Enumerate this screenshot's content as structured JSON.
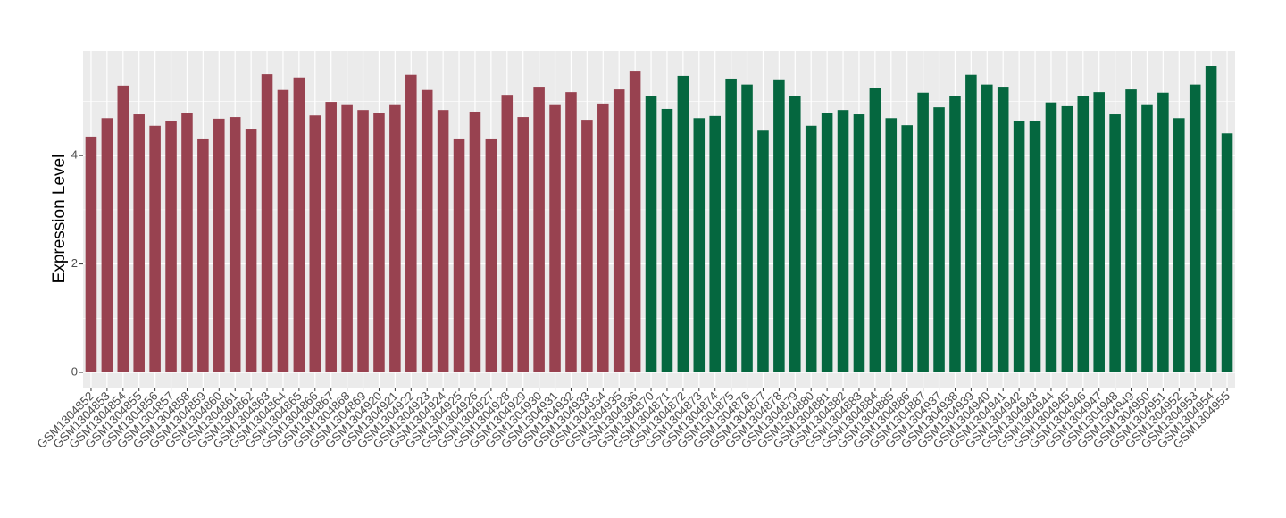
{
  "chart_data": {
    "type": "bar",
    "y_label": "Expression Level",
    "categories": [
      "GSM1304852",
      "GSM1304853",
      "GSM1304854",
      "GSM1304855",
      "GSM1304856",
      "GSM1304857",
      "GSM1304858",
      "GSM1304859",
      "GSM1304860",
      "GSM1304861",
      "GSM1304862",
      "GSM1304863",
      "GSM1304864",
      "GSM1304865",
      "GSM1304866",
      "GSM1304867",
      "GSM1304868",
      "GSM1304869",
      "GSM1304920",
      "GSM1304921",
      "GSM1304922",
      "GSM1304923",
      "GSM1304924",
      "GSM1304925",
      "GSM1304926",
      "GSM1304927",
      "GSM1304928",
      "GSM1304929",
      "GSM1304930",
      "GSM1304931",
      "GSM1304932",
      "GSM1304933",
      "GSM1304934",
      "GSM1304935",
      "GSM1304936",
      "GSM1304870",
      "GSM1304871",
      "GSM1304872",
      "GSM1304873",
      "GSM1304874",
      "GSM1304875",
      "GSM1304876",
      "GSM1304877",
      "GSM1304878",
      "GSM1304879",
      "GSM1304880",
      "GSM1304881",
      "GSM1304882",
      "GSM1304883",
      "GSM1304884",
      "GSM1304885",
      "GSM1304886",
      "GSM1304887",
      "GSM1304937",
      "GSM1304938",
      "GSM1304939",
      "GSM1304940",
      "GSM1304941",
      "GSM1304942",
      "GSM1304943",
      "GSM1304944",
      "GSM1304945",
      "GSM1304946",
      "GSM1304947",
      "GSM1304948",
      "GSM1304949",
      "GSM1304950",
      "GSM1304951",
      "GSM1304952",
      "GSM1304953",
      "GSM1304954",
      "GSM1304955"
    ],
    "series": [
      {
        "color": "#984250",
        "values": [
          4.35,
          4.69,
          5.29,
          4.76,
          4.55,
          4.63,
          4.78,
          4.3,
          4.68,
          4.71,
          4.48,
          5.5,
          5.21,
          5.44,
          4.74,
          4.99,
          4.93,
          4.84,
          4.79,
          4.93,
          5.49,
          5.21,
          4.84,
          4.3,
          4.81,
          4.3,
          5.12,
          4.71,
          5.27,
          4.93,
          5.17,
          4.66,
          4.96,
          5.22,
          5.55,
          null,
          null,
          null,
          null,
          null,
          null,
          null,
          null,
          null,
          null,
          null,
          null,
          null,
          null,
          null,
          null,
          null,
          null,
          null,
          null,
          null,
          null,
          null,
          null,
          null,
          null,
          null,
          null,
          null,
          null,
          null,
          null,
          null,
          null,
          null,
          null,
          null
        ]
      },
      {
        "color": "#05673f",
        "values": [
          null,
          null,
          null,
          null,
          null,
          null,
          null,
          null,
          null,
          null,
          null,
          null,
          null,
          null,
          null,
          null,
          null,
          null,
          null,
          null,
          null,
          null,
          null,
          null,
          null,
          null,
          null,
          null,
          null,
          null,
          null,
          null,
          null,
          null,
          null,
          5.09,
          4.86,
          5.47,
          4.69,
          4.73,
          5.42,
          5.31,
          4.46,
          5.39,
          5.09,
          4.55,
          4.79,
          4.84,
          4.76,
          5.24,
          4.69,
          4.56,
          5.16,
          4.89,
          5.09,
          5.49,
          5.31,
          5.27,
          4.64,
          4.64,
          4.98,
          4.91,
          5.09,
          5.17,
          4.76,
          5.22,
          4.93,
          5.16,
          4.69,
          5.31,
          5.65,
          4.41
        ]
      }
    ],
    "ylim": [
      -0.28,
      5.93
    ],
    "yticks": [
      0,
      2,
      4
    ],
    "minor_yticks": [
      1,
      3,
      5
    ],
    "grid": true,
    "panel_color": "#ebebeb"
  }
}
